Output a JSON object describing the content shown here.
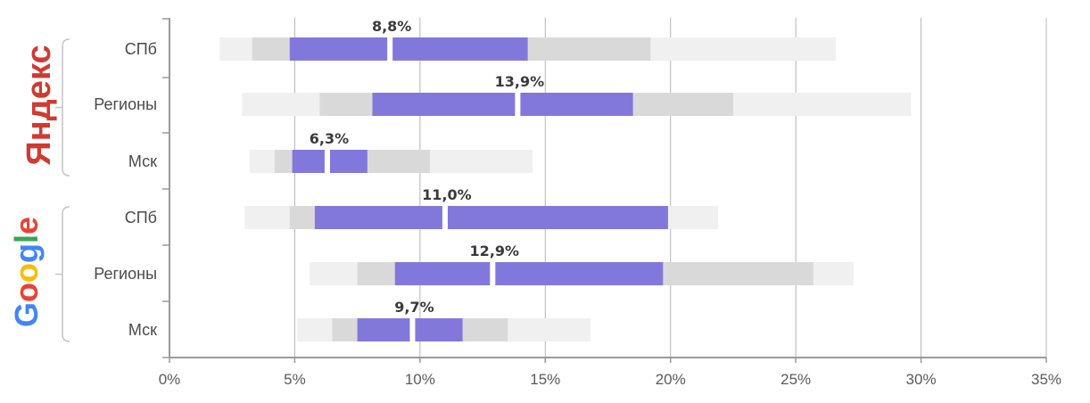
{
  "chart_data": {
    "type": "bar",
    "subtype": "box-range",
    "title": "",
    "xlabel": "",
    "ylabel": "",
    "xlim": [
      0,
      35
    ],
    "x_ticks": [
      "0%",
      "5%",
      "10%",
      "15%",
      "20%",
      "25%",
      "30%",
      "35%"
    ],
    "grid": true,
    "groups": [
      {
        "name": "Яндекс",
        "color": "#d03a32",
        "rows": [
          {
            "label": "СПб",
            "min": 2.0,
            "p10": 3.3,
            "q1": 4.8,
            "median": 8.8,
            "q3": 14.3,
            "p90": 19.2,
            "max": 26.6,
            "median_label": "8,8%"
          },
          {
            "label": "Регионы",
            "min": 2.9,
            "p10": 6.0,
            "q1": 8.1,
            "median": 13.9,
            "q3": 18.5,
            "p90": 22.5,
            "max": 29.6,
            "median_label": "13,9%"
          },
          {
            "label": "Мск",
            "min": 3.2,
            "p10": 4.2,
            "q1": 4.9,
            "median": 6.3,
            "q3": 7.9,
            "p90": 10.4,
            "max": 14.5,
            "median_label": "6,3%"
          }
        ]
      },
      {
        "name": "Google",
        "colors": [
          "#4285f4",
          "#ea4335",
          "#fbbc05",
          "#4285f4",
          "#34a853",
          "#ea4335"
        ],
        "rows": [
          {
            "label": "СПб",
            "min": 3.0,
            "p10": 4.8,
            "q1": 5.8,
            "median": 11.0,
            "q3": 19.9,
            "p90": 19.9,
            "max": 21.9,
            "median_label": "11,0%"
          },
          {
            "label": "Регионы",
            "min": 5.6,
            "p10": 7.5,
            "q1": 9.0,
            "median": 12.9,
            "q3": 19.7,
            "p90": 25.7,
            "max": 27.3,
            "median_label": "12,9%"
          },
          {
            "label": "Мск",
            "min": 5.1,
            "p10": 6.5,
            "q1": 7.5,
            "median": 9.7,
            "q3": 11.7,
            "p90": 13.5,
            "max": 16.8,
            "median_label": "9,7%"
          }
        ]
      }
    ],
    "colors": {
      "outer": "#f0f0f0",
      "inner": "#d9d9d9",
      "core": "#8278dc",
      "grid": "#b5b5b5",
      "axis": "#9a9a9a"
    }
  }
}
